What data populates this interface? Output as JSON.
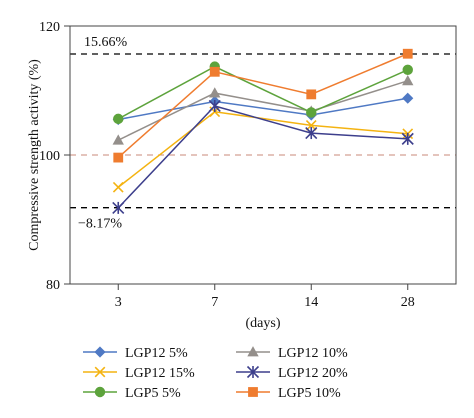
{
  "chart_data": {
    "type": "line",
    "title": "",
    "xlabel": "(days)",
    "ylabel": "Compressive strength activity (%)",
    "categories": [
      "3",
      "7",
      "14",
      "28"
    ],
    "ylim": [
      80,
      120
    ],
    "yticks": [
      80,
      100,
      120
    ],
    "ytick_labels": [
      "80",
      "100",
      "120"
    ],
    "grid": false,
    "legend_placement": "bottom",
    "reference_lines": [
      {
        "value": 115.66,
        "label": "15.66%",
        "style": "dashed",
        "color": "#000000"
      },
      {
        "value": 100,
        "label": "",
        "style": "dashed",
        "color": "#c98a7a"
      },
      {
        "value": 91.83,
        "label": "−8.17%",
        "style": "dashed",
        "color": "#000000"
      }
    ],
    "series": [
      {
        "name": "LGP12 5%",
        "values": [
          105.5,
          108.3,
          106.2,
          108.8
        ],
        "color": "#4f79c4",
        "marker": "diamond"
      },
      {
        "name": "LGP12 10%",
        "values": [
          102.3,
          109.6,
          106.8,
          111.5
        ],
        "color": "#948f8b",
        "marker": "triangle"
      },
      {
        "name": "LGP12 15%",
        "values": [
          95.0,
          106.7,
          104.6,
          103.3
        ],
        "color": "#f4b311",
        "marker": "x"
      },
      {
        "name": "LGP12 20%",
        "values": [
          91.8,
          107.6,
          103.4,
          102.5
        ],
        "color": "#3d3f8c",
        "marker": "star"
      },
      {
        "name": "LGP5 5%",
        "values": [
          105.6,
          113.7,
          106.6,
          113.2
        ],
        "color": "#5da33c",
        "marker": "circle"
      },
      {
        "name": "LGP5 10%",
        "values": [
          99.6,
          112.9,
          109.4,
          115.7
        ],
        "color": "#ef7c2f",
        "marker": "square"
      }
    ]
  }
}
